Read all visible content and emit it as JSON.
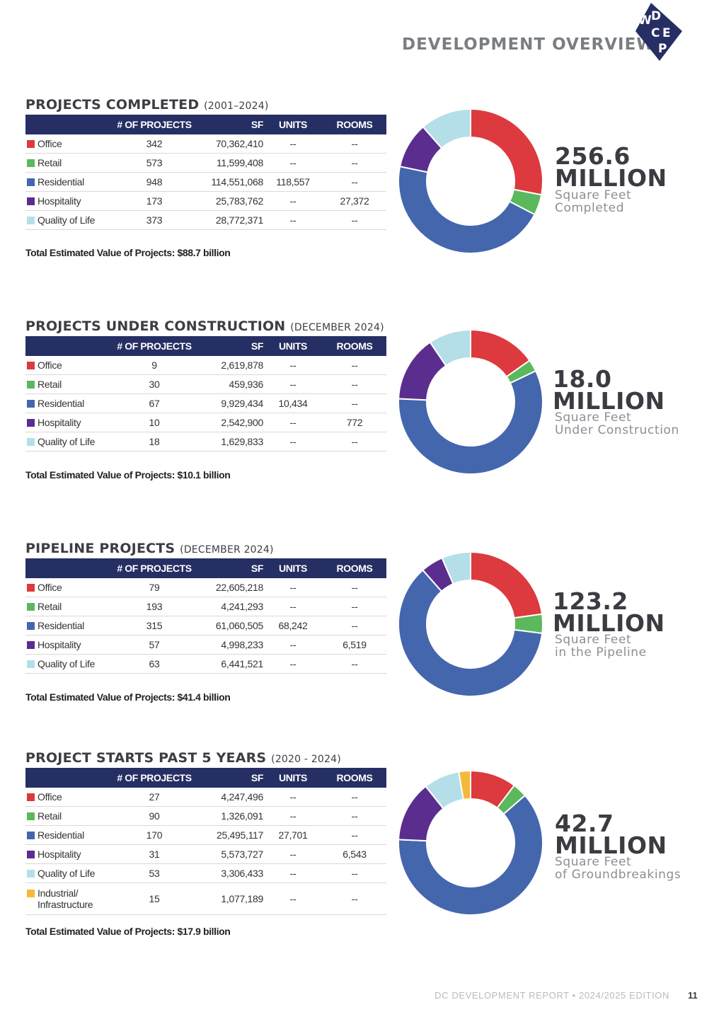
{
  "header": {
    "title": "DEVELOPMENT OVERVIEW",
    "logo_letters": [
      "W",
      "D",
      "C",
      "E",
      "P"
    ]
  },
  "columns": {
    "name": "",
    "projects": "# OF PROJECTS",
    "sf": "SF",
    "units": "UNITS",
    "rooms": "ROOMS"
  },
  "colors": {
    "header_bg": "#262f63",
    "Office": "#dc3a3e",
    "Retail": "#5cb85c",
    "Residential": "#4466ad",
    "Hospitality": "#5b2d8e",
    "Quality of Life": "#b5dfe8",
    "Industrial/Infrastructure": "#f3b93b"
  },
  "sections": [
    {
      "title": "PROJECTS COMPLETED",
      "subtitle": "(2001–2024)",
      "rows": [
        {
          "name": "Office",
          "projects": "342",
          "sf": "70,362,410",
          "units": "--",
          "rooms": "--"
        },
        {
          "name": "Retail",
          "projects": "573",
          "sf": "11,599,408",
          "units": "--",
          "rooms": "--"
        },
        {
          "name": "Residential",
          "projects": "948",
          "sf": "114,551,068",
          "units": "118,557",
          "rooms": "--"
        },
        {
          "name": "Hospitality",
          "projects": "173",
          "sf": "25,783,762",
          "units": "--",
          "rooms": "27,372"
        },
        {
          "name": "Quality of Life",
          "projects": "373",
          "sf": "28,772,371",
          "units": "--",
          "rooms": "--"
        }
      ],
      "total": "Total Estimated Value of Projects: $88.7 billion",
      "big_number": "256.6",
      "big_unit": "MILLION",
      "caption_1": "Square Feet",
      "caption_2": "Completed"
    },
    {
      "title": "PROJECTS UNDER CONSTRUCTION",
      "subtitle": "(DECEMBER 2024)",
      "rows": [
        {
          "name": "Office",
          "projects": "9",
          "sf": "2,619,878",
          "units": "--",
          "rooms": "--"
        },
        {
          "name": "Retail",
          "projects": "30",
          "sf": "459,936",
          "units": "--",
          "rooms": "--"
        },
        {
          "name": "Residential",
          "projects": "67",
          "sf": "9,929,434",
          "units": "10,434",
          "rooms": "--"
        },
        {
          "name": "Hospitality",
          "projects": "10",
          "sf": "2,542,900",
          "units": "--",
          "rooms": "772"
        },
        {
          "name": "Quality of Life",
          "projects": "18",
          "sf": "1,629,833",
          "units": "--",
          "rooms": "--"
        }
      ],
      "total": "Total Estimated Value of Projects: $10.1 billion",
      "big_number": "18.0",
      "big_unit": "MILLION",
      "caption_1": "Square Feet",
      "caption_2": "Under Construction"
    },
    {
      "title": "PIPELINE PROJECTS",
      "subtitle": "(DECEMBER 2024)",
      "rows": [
        {
          "name": "Office",
          "projects": "79",
          "sf": "22,605,218",
          "units": "--",
          "rooms": "--"
        },
        {
          "name": "Retail",
          "projects": "193",
          "sf": "4,241,293",
          "units": "--",
          "rooms": "--"
        },
        {
          "name": "Residential",
          "projects": "315",
          "sf": "61,060,505",
          "units": "68,242",
          "rooms": "--"
        },
        {
          "name": "Hospitality",
          "projects": "57",
          "sf": "4,998,233",
          "units": "--",
          "rooms": "6,519"
        },
        {
          "name": "Quality of Life",
          "projects": "63",
          "sf": "6,441,521",
          "units": "--",
          "rooms": "--"
        }
      ],
      "total": "Total Estimated Value of Projects: $41.4 billion",
      "big_number": "123.2",
      "big_unit": "MILLION",
      "caption_1": "Square Feet",
      "caption_2": "in the Pipeline"
    },
    {
      "title": "PROJECT STARTS PAST 5 YEARS",
      "subtitle": "(2020 - 2024)",
      "rows": [
        {
          "name": "Office",
          "projects": "27",
          "sf": "4,247,496",
          "units": "--",
          "rooms": "--"
        },
        {
          "name": "Retail",
          "projects": "90",
          "sf": "1,326,091",
          "units": "--",
          "rooms": "--"
        },
        {
          "name": "Residential",
          "projects": "170",
          "sf": "25,495,117",
          "units": "27,701",
          "rooms": "--"
        },
        {
          "name": "Hospitality",
          "projects": "31",
          "sf": "5,573,727",
          "units": "--",
          "rooms": "6,543"
        },
        {
          "name": "Quality of Life",
          "projects": "53",
          "sf": "3,306,433",
          "units": "--",
          "rooms": "--"
        },
        {
          "name": "Industrial/Infrastructure",
          "name_line1": "Industrial/",
          "name_line2": "Infrastructure",
          "projects": "15",
          "sf": "1,077,189",
          "units": "--",
          "rooms": "--"
        }
      ],
      "total": "Total Estimated Value of Projects: $17.9 billion",
      "big_number": "42.7",
      "big_unit": "MILLION",
      "caption_1": "Square Feet",
      "caption_2": "of Groundbreakings"
    }
  ],
  "chart_data": [
    {
      "type": "pie",
      "categories": [
        "Office",
        "Retail",
        "Residential",
        "Hospitality",
        "Quality of Life"
      ],
      "values": [
        70362410,
        11599408,
        114551068,
        25783762,
        28772371
      ]
    },
    {
      "type": "pie",
      "categories": [
        "Office",
        "Retail",
        "Residential",
        "Hospitality",
        "Quality of Life"
      ],
      "values": [
        2619878,
        459936,
        9929434,
        2542900,
        1629833
      ]
    },
    {
      "type": "pie",
      "categories": [
        "Office",
        "Retail",
        "Residential",
        "Hospitality",
        "Quality of Life"
      ],
      "values": [
        22605218,
        4241293,
        61060505,
        4998233,
        6441521
      ]
    },
    {
      "type": "pie",
      "categories": [
        "Office",
        "Retail",
        "Residential",
        "Hospitality",
        "Quality of Life",
        "Industrial/Infrastructure"
      ],
      "values": [
        4247496,
        1326091,
        25495117,
        5573727,
        3306433,
        1077189
      ]
    }
  ],
  "footer": {
    "text": "DC DEVELOPMENT REPORT  •  2024/2025 EDITION",
    "page": "11"
  }
}
